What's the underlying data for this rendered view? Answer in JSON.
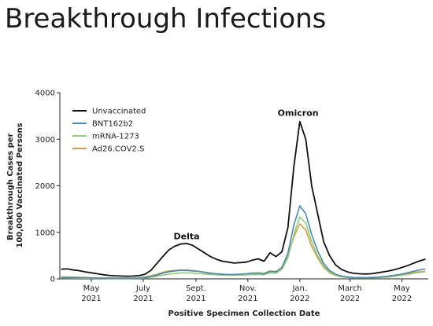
{
  "slide": {
    "title": "Breakthrough Infections"
  },
  "chart_data": {
    "type": "line",
    "xlabel": "Positive Specimen Collection Date",
    "ylabel": [
      "Breakthrough Cases per",
      "100,000 Vaccinated Persons"
    ],
    "ylim": [
      0,
      4000
    ],
    "yticks": [
      0,
      1000,
      2000,
      3000,
      4000
    ],
    "ytick_labels": [
      "0",
      "1000",
      "2000",
      "3000",
      "4000"
    ],
    "xlim": [
      "2021-03-25",
      "2022-06-01"
    ],
    "xticks": [
      {
        "date": "2021-05-01",
        "month": "May",
        "year": "2021"
      },
      {
        "date": "2021-07-01",
        "month": "July",
        "year": "2021"
      },
      {
        "date": "2021-09-01",
        "month": "Sept.",
        "year": "2021"
      },
      {
        "date": "2021-11-01",
        "month": "Nov.",
        "year": "2021"
      },
      {
        "date": "2022-01-01",
        "month": "Jan.",
        "year": "2022"
      },
      {
        "date": "2022-03-01",
        "month": "March",
        "year": "2022"
      },
      {
        "date": "2022-05-01",
        "month": "May",
        "year": "2022"
      }
    ],
    "grid": false,
    "legend_position": "top-left",
    "annotations": [
      {
        "text": "Delta",
        "x": "2021-08-21",
        "y": 850
      },
      {
        "text": "Omicron",
        "x": "2021-12-30",
        "y": 3500
      }
    ],
    "x": [
      "2021-03-27",
      "2021-04-03",
      "2021-04-10",
      "2021-04-17",
      "2021-04-24",
      "2021-05-01",
      "2021-05-08",
      "2021-05-15",
      "2021-05-22",
      "2021-05-29",
      "2021-06-05",
      "2021-06-12",
      "2021-06-19",
      "2021-06-26",
      "2021-07-03",
      "2021-07-10",
      "2021-07-17",
      "2021-07-24",
      "2021-07-31",
      "2021-08-07",
      "2021-08-14",
      "2021-08-21",
      "2021-08-28",
      "2021-09-04",
      "2021-09-11",
      "2021-09-18",
      "2021-09-25",
      "2021-10-02",
      "2021-10-09",
      "2021-10-16",
      "2021-10-23",
      "2021-10-30",
      "2021-11-06",
      "2021-11-13",
      "2021-11-20",
      "2021-11-27",
      "2021-12-04",
      "2021-12-11",
      "2021-12-18",
      "2021-12-25",
      "2022-01-01",
      "2022-01-08",
      "2022-01-15",
      "2022-01-22",
      "2022-01-29",
      "2022-02-05",
      "2022-02-12",
      "2022-02-19",
      "2022-02-26",
      "2022-03-05",
      "2022-03-12",
      "2022-03-19",
      "2022-03-26",
      "2022-04-02",
      "2022-04-09",
      "2022-04-16",
      "2022-04-23",
      "2022-04-30",
      "2022-05-07",
      "2022-05-14",
      "2022-05-21",
      "2022-05-28"
    ],
    "series": [
      {
        "name": "Unvaccinated",
        "color": "#111111",
        "values": [
          210,
          215,
          190,
          175,
          150,
          130,
          110,
          90,
          75,
          65,
          60,
          58,
          60,
          70,
          100,
          180,
          330,
          480,
          620,
          700,
          750,
          760,
          720,
          640,
          560,
          480,
          420,
          380,
          360,
          340,
          350,
          360,
          400,
          430,
          380,
          560,
          480,
          580,
          1100,
          2400,
          3380,
          3000,
          2000,
          1400,
          800,
          500,
          300,
          200,
          150,
          120,
          110,
          105,
          110,
          130,
          150,
          170,
          200,
          240,
          280,
          330,
          380,
          420
        ]
      },
      {
        "name": "BNT162b2",
        "color": "#4a8ab5",
        "values": [
          30,
          30,
          28,
          25,
          22,
          20,
          18,
          16,
          15,
          15,
          15,
          15,
          17,
          20,
          30,
          50,
          80,
          120,
          150,
          170,
          180,
          180,
          170,
          160,
          140,
          120,
          110,
          100,
          95,
          95,
          100,
          110,
          120,
          120,
          110,
          160,
          150,
          250,
          550,
          1150,
          1570,
          1400,
          950,
          600,
          330,
          180,
          100,
          60,
          40,
          30,
          28,
          28,
          30,
          35,
          45,
          60,
          80,
          100,
          130,
          160,
          190,
          210
        ]
      },
      {
        "name": "mRNA-1273",
        "color": "#93cc7a",
        "values": [
          20,
          20,
          18,
          16,
          14,
          13,
          12,
          11,
          10,
          10,
          10,
          10,
          11,
          13,
          20,
          35,
          55,
          80,
          100,
          115,
          125,
          130,
          125,
          115,
          105,
          95,
          85,
          80,
          78,
          78,
          80,
          85,
          90,
          92,
          88,
          130,
          120,
          200,
          450,
          950,
          1330,
          1200,
          800,
          500,
          280,
          150,
          80,
          45,
          30,
          22,
          20,
          20,
          22,
          25,
          30,
          40,
          55,
          75,
          95,
          115,
          135,
          150
        ]
      },
      {
        "name": "Ad26.COV2.S",
        "color": "#c9a042",
        "values": [
          40,
          40,
          37,
          33,
          30,
          26,
          23,
          20,
          18,
          17,
          17,
          17,
          20,
          25,
          40,
          65,
          100,
          140,
          170,
          180,
          190,
          190,
          180,
          165,
          145,
          125,
          110,
          100,
          95,
          95,
          100,
          110,
          125,
          130,
          120,
          170,
          160,
          230,
          500,
          900,
          1180,
          1050,
          700,
          450,
          250,
          130,
          75,
          45,
          32,
          28,
          26,
          27,
          30,
          35,
          45,
          60,
          75,
          95,
          115,
          135,
          150,
          160
        ]
      }
    ]
  }
}
